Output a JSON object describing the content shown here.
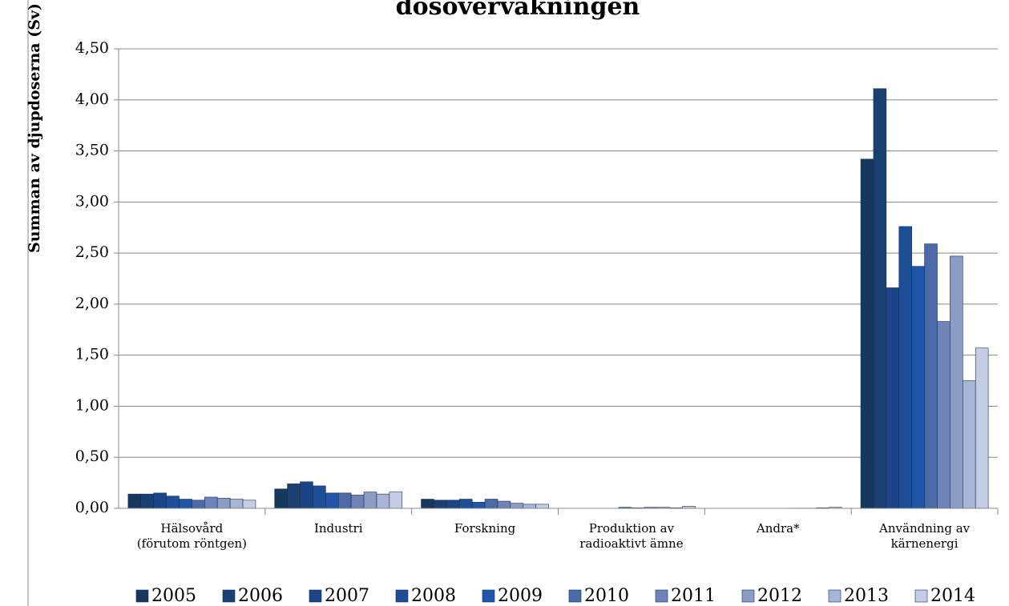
{
  "chart_data": {
    "type": "bar",
    "title": "dosövervakningen",
    "ylabel": "Summan av djupdoserna (Sv)",
    "categories": [
      [
        "Hälsovård",
        "(förutom röntgen)"
      ],
      [
        "Industri"
      ],
      [
        "Forskning"
      ],
      [
        "Produktion av",
        "radioaktivt ämne"
      ],
      [
        "Andra*"
      ],
      [
        "Användning av",
        "kärnenergi"
      ]
    ],
    "series": [
      {
        "name": "2005",
        "color": "#17375e",
        "values": [
          0.14,
          0.19,
          0.09,
          0,
          0,
          3.42
        ]
      },
      {
        "name": "2006",
        "color": "#1a3f73",
        "values": [
          0.14,
          0.24,
          0.08,
          0,
          0,
          4.11
        ]
      },
      {
        "name": "2007",
        "color": "#1c4587",
        "values": [
          0.15,
          0.26,
          0.08,
          0,
          0,
          2.16
        ]
      },
      {
        "name": "2008",
        "color": "#1f4e98",
        "values": [
          0.12,
          0.22,
          0.09,
          0,
          0,
          2.76
        ]
      },
      {
        "name": "2009",
        "color": "#1f56a8",
        "values": [
          0.09,
          0.15,
          0.06,
          0.01,
          0,
          2.37
        ]
      },
      {
        "name": "2010",
        "color": "#4a6aa8",
        "values": [
          0.08,
          0.15,
          0.09,
          0.005,
          0,
          2.59
        ]
      },
      {
        "name": "2011",
        "color": "#7083b8",
        "values": [
          0.11,
          0.13,
          0.07,
          0.01,
          0.002,
          1.83
        ]
      },
      {
        "name": "2012",
        "color": "#8d9cc4",
        "values": [
          0.1,
          0.16,
          0.05,
          0.01,
          0.002,
          2.47
        ]
      },
      {
        "name": "2013",
        "color": "#a9b5d6",
        "values": [
          0.09,
          0.14,
          0.04,
          0.005,
          0.005,
          1.25
        ]
      },
      {
        "name": "2014",
        "color": "#c4cde4",
        "values": [
          0.08,
          0.16,
          0.04,
          0.02,
          0.01,
          1.57
        ]
      }
    ],
    "ylim": [
      0,
      4.5
    ],
    "yticks": [
      {
        "value": 0,
        "label": "0,00"
      },
      {
        "value": 0.5,
        "label": "0,50"
      },
      {
        "value": 1,
        "label": "1,00"
      },
      {
        "value": 1.5,
        "label": "1,50"
      },
      {
        "value": 2,
        "label": "2,00"
      },
      {
        "value": 2.5,
        "label": "2,50"
      },
      {
        "value": 3,
        "label": "3,00"
      },
      {
        "value": 3.5,
        "label": "3,50"
      },
      {
        "value": 4,
        "label": "4,00"
      },
      {
        "value": 4.5,
        "label": "4,50"
      }
    ],
    "grid": true,
    "legend": "bottom"
  }
}
